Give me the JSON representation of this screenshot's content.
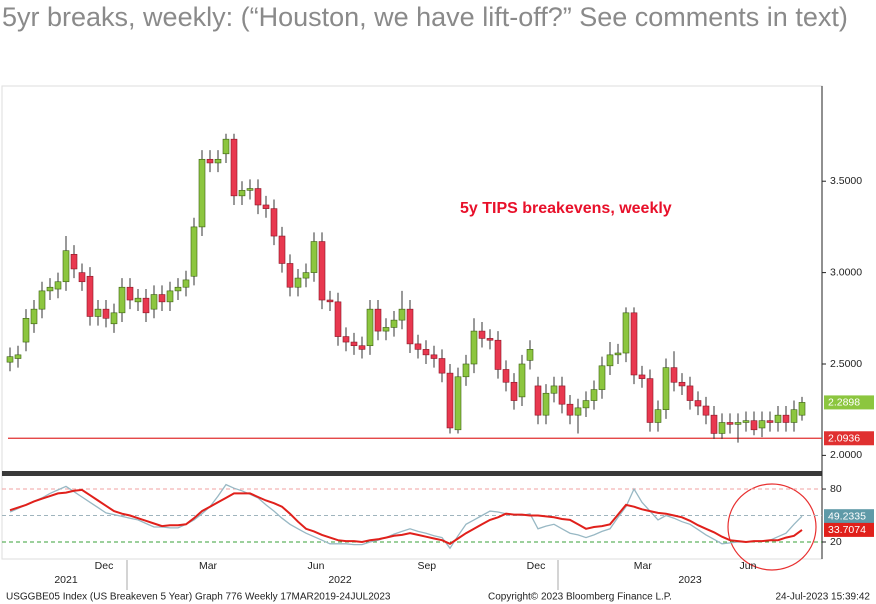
{
  "title": "5yr breaks, weekly: (“Houston, we have lift-off?” See comments in text)",
  "footer": {
    "left": "USGGBE05 Index (US Breakeven 5 Year) Graph 776  Weekly 17MAR2019-24JUL2023",
    "center": "Copyright© 2023 Bloomberg Finance L.P.",
    "right": "24-Jul-2023 15:39:42"
  },
  "chart_data": [
    {
      "type": "candlestick",
      "annotation": "5y TIPS breakevens, weekly",
      "up_color": "#8cc63f",
      "down_color": "#e8384f",
      "xlim": [
        -1,
        101.5
      ],
      "ylim": [
        1.92,
        4.01
      ],
      "xticks": [
        {
          "value": 11.75,
          "label": "Dec"
        },
        {
          "value": 24.75,
          "label": "Mar"
        },
        {
          "value": 38.25,
          "label": "Jun"
        },
        {
          "value": 52.1,
          "label": "Sep"
        },
        {
          "value": 65.75,
          "label": "Dec"
        },
        {
          "value": 79.1,
          "label": "Mar"
        },
        {
          "value": 92.25,
          "label": "Jun"
        }
      ],
      "year_ticks": [
        {
          "value": 7,
          "label": "2021"
        },
        {
          "value": 41.25,
          "label": "2022"
        },
        {
          "value": 85,
          "label": "2023"
        }
      ],
      "yticks": [
        {
          "value": 2.0,
          "label": "2.0000"
        },
        {
          "value": 2.5,
          "label": "2.5000"
        },
        {
          "value": 3.0,
          "label": "3.0000"
        },
        {
          "value": 3.5,
          "label": "3.5000"
        }
      ],
      "hline": {
        "value": 2.0936,
        "color": "#e03030"
      },
      "open": [
        2.51,
        2.53,
        2.62,
        2.72,
        2.8,
        2.9,
        2.91,
        2.95,
        3.1,
        3.0,
        2.98,
        2.76,
        2.8,
        2.72,
        2.78,
        2.92,
        2.84,
        2.86,
        2.8,
        2.88,
        2.84,
        2.9,
        2.92,
        2.98,
        3.25,
        3.62,
        3.6,
        3.65,
        3.73,
        3.42,
        3.45,
        3.46,
        3.37,
        3.35,
        3.2,
        3.05,
        2.92,
        2.97,
        3.0,
        3.17,
        2.85,
        2.84,
        2.65,
        2.62,
        2.6,
        2.6,
        2.8,
        2.68,
        2.7,
        2.74,
        2.8,
        2.61,
        2.58,
        2.55,
        2.53,
        2.45,
        2.14,
        2.43,
        2.5,
        2.68,
        2.64,
        2.63,
        2.47,
        2.4,
        2.32,
        2.52,
        2.38,
        2.22,
        2.34,
        2.38,
        2.28,
        2.22,
        2.26,
        2.3,
        2.36,
        2.49,
        2.55,
        2.56,
        2.78,
        2.44,
        2.42,
        2.18,
        2.25,
        2.48,
        2.4,
        2.38,
        2.3,
        2.27,
        2.22,
        2.12,
        2.18,
        2.17,
        2.18,
        2.19,
        2.15,
        2.19,
        2.18,
        2.22,
        2.18,
        2.22
      ],
      "high": [
        2.59,
        2.6,
        2.8,
        2.85,
        2.95,
        2.97,
        3.0,
        3.2,
        3.15,
        3.05,
        3.03,
        2.85,
        2.85,
        2.83,
        2.97,
        2.97,
        2.91,
        2.91,
        2.93,
        2.93,
        2.95,
        2.97,
        3.01,
        3.3,
        3.67,
        3.67,
        3.67,
        3.76,
        3.76,
        3.5,
        3.51,
        3.51,
        3.42,
        3.4,
        3.25,
        3.1,
        3.02,
        3.05,
        3.22,
        3.22,
        2.9,
        2.89,
        2.7,
        2.67,
        2.65,
        2.85,
        2.85,
        2.75,
        2.79,
        2.9,
        2.85,
        2.66,
        2.63,
        2.6,
        2.58,
        2.5,
        2.48,
        2.55,
        2.75,
        2.73,
        2.69,
        2.68,
        2.52,
        2.45,
        2.55,
        2.63,
        2.43,
        2.39,
        2.43,
        2.43,
        2.33,
        2.31,
        2.35,
        2.41,
        2.54,
        2.62,
        2.61,
        2.81,
        2.81,
        2.49,
        2.47,
        2.3,
        2.53,
        2.57,
        2.45,
        2.43,
        2.35,
        2.32,
        2.27,
        2.23,
        2.23,
        2.23,
        2.24,
        2.24,
        2.24,
        2.24,
        2.27,
        2.27,
        2.3,
        2.32
      ],
      "low": [
        2.46,
        2.48,
        2.57,
        2.67,
        2.75,
        2.85,
        2.86,
        2.9,
        2.97,
        2.9,
        2.71,
        2.71,
        2.7,
        2.67,
        2.73,
        2.8,
        2.79,
        2.73,
        2.75,
        2.79,
        2.79,
        2.85,
        2.87,
        2.93,
        3.2,
        3.55,
        3.55,
        3.6,
        3.37,
        3.37,
        3.4,
        3.32,
        3.3,
        3.15,
        3.0,
        2.87,
        2.87,
        2.92,
        2.95,
        2.8,
        2.79,
        2.6,
        2.57,
        2.55,
        2.53,
        2.55,
        2.63,
        2.63,
        2.65,
        2.69,
        2.56,
        2.53,
        2.5,
        2.48,
        2.4,
        2.12,
        2.12,
        2.38,
        2.45,
        2.59,
        2.58,
        2.42,
        2.35,
        2.25,
        2.27,
        2.47,
        2.17,
        2.17,
        2.29,
        2.23,
        2.17,
        2.12,
        2.21,
        2.25,
        2.31,
        2.44,
        2.5,
        2.51,
        2.39,
        2.37,
        2.13,
        2.13,
        2.2,
        2.35,
        2.33,
        2.25,
        2.22,
        2.17,
        2.09,
        2.09,
        2.12,
        2.07,
        2.13,
        2.11,
        2.1,
        2.13,
        2.13,
        2.13,
        2.13,
        2.19
      ],
      "close": [
        2.54,
        2.55,
        2.75,
        2.8,
        2.9,
        2.92,
        2.95,
        3.12,
        3.02,
        2.95,
        2.76,
        2.8,
        2.75,
        2.78,
        2.92,
        2.85,
        2.86,
        2.78,
        2.88,
        2.84,
        2.9,
        2.92,
        2.96,
        3.25,
        3.62,
        3.6,
        3.62,
        3.73,
        3.42,
        3.45,
        3.46,
        3.37,
        3.35,
        3.2,
        3.05,
        2.92,
        2.97,
        3.0,
        3.17,
        2.85,
        2.84,
        2.65,
        2.62,
        2.6,
        2.58,
        2.8,
        2.68,
        2.7,
        2.74,
        2.8,
        2.61,
        2.58,
        2.55,
        2.53,
        2.45,
        2.15,
        2.43,
        2.5,
        2.68,
        2.64,
        2.63,
        2.47,
        2.4,
        2.3,
        2.5,
        2.58,
        2.22,
        2.34,
        2.38,
        2.28,
        2.22,
        2.26,
        2.3,
        2.36,
        2.49,
        2.55,
        2.56,
        2.78,
        2.44,
        2.42,
        2.18,
        2.25,
        2.48,
        2.4,
        2.38,
        2.3,
        2.27,
        2.22,
        2.12,
        2.18,
        2.17,
        2.18,
        2.19,
        2.14,
        2.19,
        2.18,
        2.22,
        2.18,
        2.25,
        2.2898
      ]
    },
    {
      "type": "line",
      "xlim": [
        -1,
        101.5
      ],
      "ylim": [
        3,
        92.5
      ],
      "yticks": [
        20,
        80
      ],
      "hlines": [
        {
          "value": 80,
          "color": "#f0a0a0"
        },
        {
          "value": 50,
          "color": "#9fb4bd"
        },
        {
          "value": 20,
          "color": "#3aa03a"
        }
      ],
      "series": [
        {
          "color": "#98b8c4",
          "label_color": "#5f9aa8",
          "values": [
            54,
            58,
            62,
            66,
            70,
            75,
            79,
            83,
            77,
            71,
            65,
            59,
            53,
            51,
            49,
            47,
            45,
            41,
            37,
            37,
            36,
            36,
            40,
            45,
            52,
            60,
            72,
            85,
            81,
            78,
            74,
            70,
            62,
            55,
            47,
            40,
            35,
            30,
            26,
            22,
            18,
            18,
            18,
            17,
            17,
            20,
            22,
            25,
            29,
            32,
            35,
            32,
            30,
            27,
            25,
            13,
            27,
            40,
            45,
            50,
            55,
            54,
            52,
            51,
            50,
            52,
            35,
            38,
            40,
            35,
            30,
            28,
            25,
            28,
            32,
            35,
            48,
            60,
            80,
            65,
            55,
            45,
            50,
            47,
            43,
            40,
            34,
            28,
            23,
            18,
            19,
            20,
            20,
            21,
            21,
            22,
            26,
            30,
            40,
            49.2335
          ]
        },
        {
          "color": "#e0201b",
          "label_color": "#e0201b",
          "values": [
            56,
            59,
            62,
            66,
            69,
            72,
            75,
            76,
            78,
            79,
            73,
            67,
            61,
            55,
            52,
            50,
            47,
            44,
            41,
            38,
            39,
            39,
            40,
            47,
            55,
            60,
            65,
            70,
            75,
            75,
            75,
            71,
            67,
            64,
            60,
            52,
            43,
            35,
            32,
            28,
            25,
            22,
            21,
            21,
            20,
            22,
            23,
            25,
            27,
            28,
            30,
            28,
            26,
            24,
            22,
            18,
            24,
            30,
            35,
            40,
            45,
            48,
            52,
            51,
            51,
            50,
            50,
            49,
            48,
            46,
            45,
            40,
            35,
            37,
            38,
            40,
            51,
            62,
            60,
            57,
            55,
            53,
            52,
            50,
            48,
            44,
            39,
            35,
            31,
            26,
            22,
            21,
            20,
            21,
            21,
            22,
            22,
            25,
            27,
            33.7074
          ]
        }
      ]
    }
  ]
}
